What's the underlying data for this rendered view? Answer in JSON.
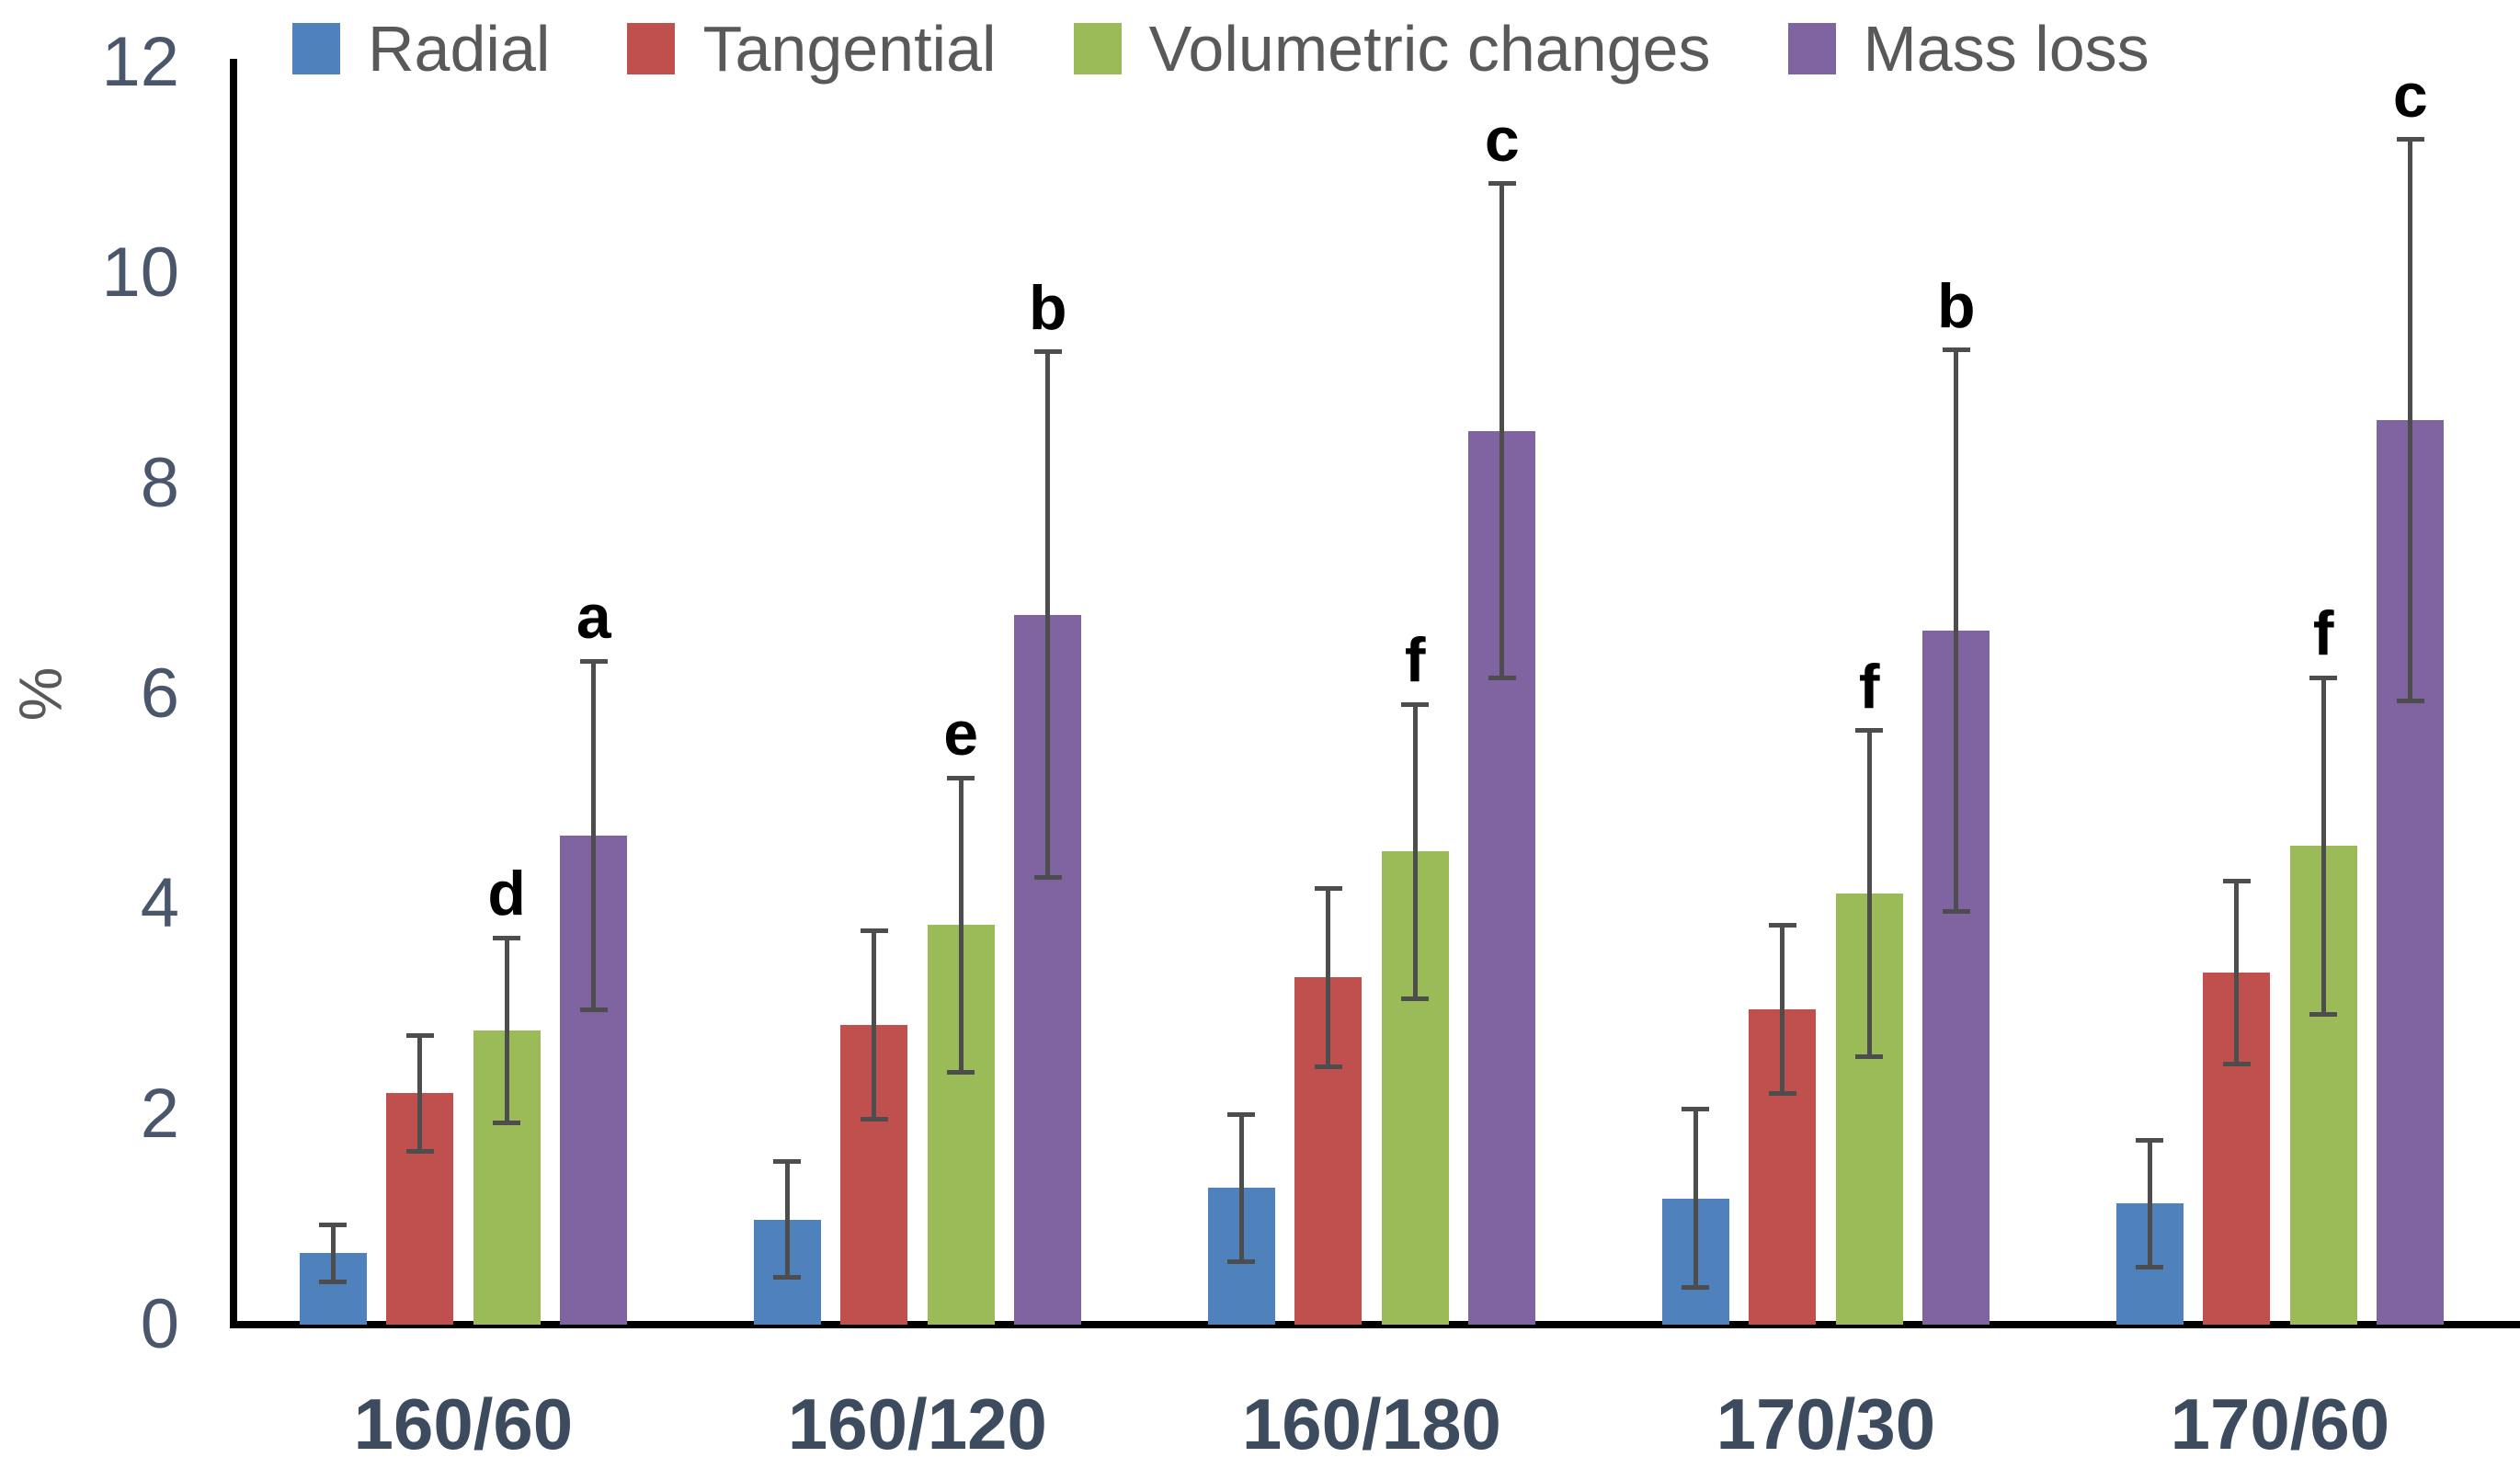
{
  "chart_data": {
    "type": "bar",
    "title": "",
    "xlabel": "",
    "ylabel": "%",
    "ylim": [
      0,
      12
    ],
    "yticks": [
      0,
      2,
      4,
      6,
      8,
      10,
      12
    ],
    "grid": false,
    "legend_position": "top",
    "categories": [
      "160/60",
      "160/120",
      "160/180",
      "170/30",
      "170/60"
    ],
    "series": [
      {
        "name": "Radial",
        "color": "#4F81BD",
        "values": [
          0.68,
          1.0,
          1.3,
          1.2,
          1.15
        ],
        "errors": [
          0.27,
          0.55,
          0.7,
          0.85,
          0.6
        ],
        "letters": [
          "",
          "",
          "",
          "",
          ""
        ]
      },
      {
        "name": "Tangential",
        "color": "#C0504D",
        "values": [
          2.2,
          2.85,
          3.3,
          3.0,
          3.35
        ],
        "errors": [
          0.55,
          0.9,
          0.85,
          0.8,
          0.87
        ],
        "letters": [
          "",
          "",
          "",
          "",
          ""
        ]
      },
      {
        "name": "Volumetric changes",
        "color": "#9BBB59",
        "values": [
          2.8,
          3.8,
          4.5,
          4.1,
          4.55
        ],
        "errors": [
          0.88,
          1.4,
          1.4,
          1.55,
          1.6
        ],
        "letters": [
          "d",
          "e",
          "f",
          "f",
          "f"
        ]
      },
      {
        "name": "Mass loss",
        "color": "#8064A2",
        "values": [
          4.65,
          6.75,
          8.5,
          6.6,
          8.6
        ],
        "errors": [
          1.66,
          2.5,
          2.35,
          2.67,
          2.67
        ],
        "letters": [
          "a",
          "b",
          "c",
          "b",
          "c"
        ]
      }
    ],
    "colors": {
      "error_bar": "#4d4d4d",
      "axis": "#000000",
      "ytick_label": "#4a566b",
      "category_label": "#3d4b5f",
      "legend_text": "#595959",
      "annotation": "#000000",
      "background": "#ffffff"
    }
  }
}
